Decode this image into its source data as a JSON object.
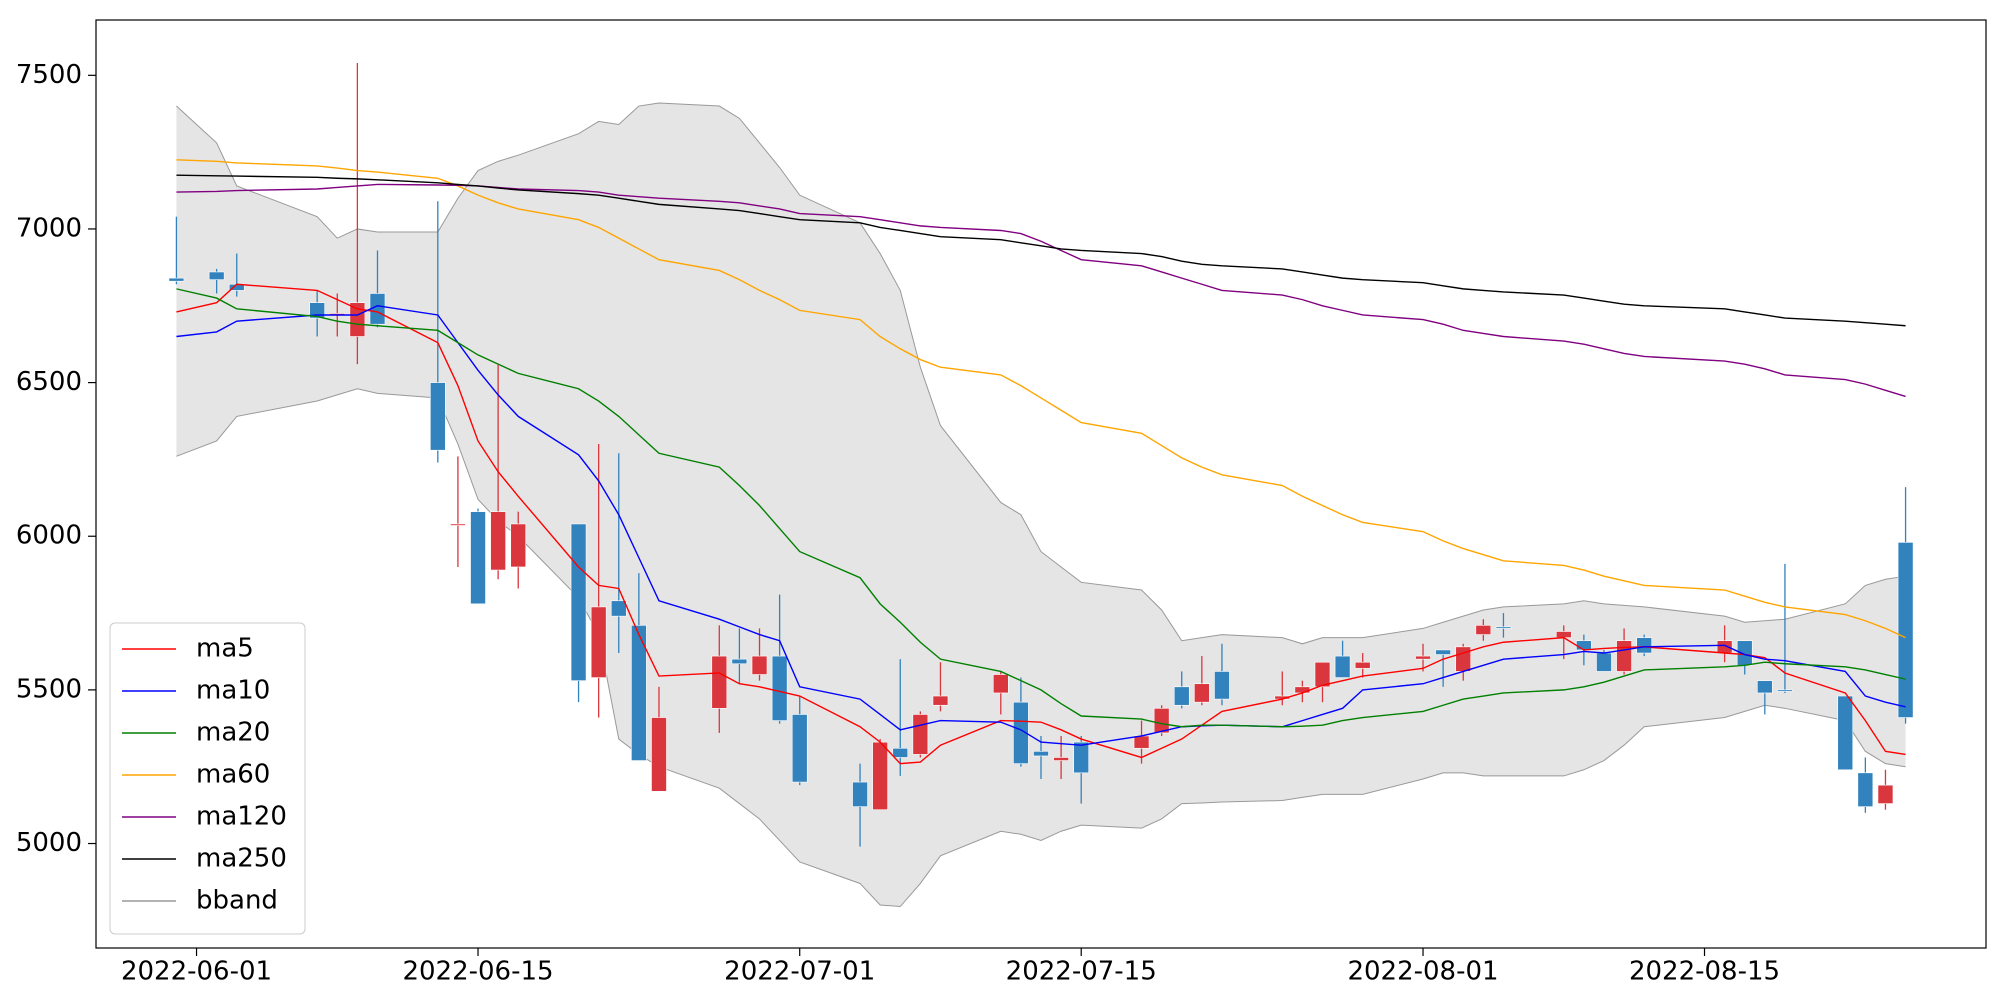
{
  "chart_data": {
    "type": "candlestick",
    "x": [
      "2022-05-31",
      "2022-06-02",
      "2022-06-03",
      "2022-06-07",
      "2022-06-08",
      "2022-06-09",
      "2022-06-10",
      "2022-06-13",
      "2022-06-14",
      "2022-06-15",
      "2022-06-16",
      "2022-06-17",
      "2022-06-20",
      "2022-06-21",
      "2022-06-22",
      "2022-06-23",
      "2022-06-24",
      "2022-06-27",
      "2022-06-28",
      "2022-06-29",
      "2022-06-30",
      "2022-07-01",
      "2022-07-04",
      "2022-07-05",
      "2022-07-06",
      "2022-07-07",
      "2022-07-08",
      "2022-07-11",
      "2022-07-12",
      "2022-07-13",
      "2022-07-14",
      "2022-07-15",
      "2022-07-18",
      "2022-07-19",
      "2022-07-20",
      "2022-07-21",
      "2022-07-22",
      "2022-07-25",
      "2022-07-26",
      "2022-07-27",
      "2022-07-28",
      "2022-07-29",
      "2022-08-01",
      "2022-08-02",
      "2022-08-03",
      "2022-08-04",
      "2022-08-05",
      "2022-08-08",
      "2022-08-09",
      "2022-08-10",
      "2022-08-11",
      "2022-08-12",
      "2022-08-16",
      "2022-08-17",
      "2022-08-18",
      "2022-08-19",
      "2022-08-22",
      "2022-08-23",
      "2022-08-24",
      "2022-08-25"
    ],
    "open": [
      6840,
      6860,
      6820,
      6760,
      6720,
      6650,
      6790,
      6500,
      6035,
      6080,
      5890,
      5900,
      6040,
      5540,
      5790,
      5710,
      5170,
      5440,
      5600,
      5550,
      5610,
      5420,
      5200,
      5110,
      5310,
      5290,
      5450,
      5490,
      5460,
      5300,
      5270,
      5330,
      5310,
      5360,
      5510,
      5460,
      5560,
      5470,
      5490,
      5510,
      5610,
      5570,
      5600,
      5630,
      5560,
      5680,
      5705,
      5670,
      5660,
      5620,
      5560,
      5670,
      5620,
      5660,
      5530,
      5500,
      5480,
      5230,
      5130,
      5980
    ],
    "high": [
      7040,
      6870,
      6920,
      6800,
      6790,
      7540,
      6930,
      7090,
      6260,
      6090,
      6560,
      6080,
      6040,
      6300,
      6270,
      5880,
      5510,
      5710,
      5700,
      5700,
      5810,
      5480,
      5260,
      5340,
      5600,
      5430,
      5590,
      5560,
      5540,
      5350,
      5350,
      5350,
      5400,
      5450,
      5560,
      5610,
      5650,
      5560,
      5530,
      5590,
      5660,
      5620,
      5650,
      5630,
      5650,
      5730,
      5750,
      5710,
      5680,
      5630,
      5700,
      5680,
      5710,
      5660,
      5530,
      5910,
      5480,
      5280,
      5240,
      6160
    ],
    "low": [
      6820,
      6790,
      6780,
      6650,
      6650,
      6560,
      6680,
      6240,
      5900,
      5780,
      5860,
      5830,
      5460,
      5410,
      5620,
      5270,
      5170,
      5360,
      5520,
      5530,
      5390,
      5190,
      4990,
      5110,
      5220,
      5280,
      5430,
      5420,
      5250,
      5210,
      5210,
      5130,
      5260,
      5350,
      5440,
      5450,
      5450,
      5450,
      5460,
      5460,
      5540,
      5540,
      5560,
      5510,
      5530,
      5660,
      5670,
      5600,
      5580,
      5560,
      5550,
      5610,
      5590,
      5550,
      5420,
      5490,
      5240,
      5100,
      5110,
      5390
    ],
    "close": [
      6830,
      6835,
      6800,
      6710,
      6725,
      6760,
      6690,
      6280,
      6040,
      5780,
      6080,
      6040,
      5530,
      5770,
      5740,
      5270,
      5410,
      5610,
      5585,
      5610,
      5400,
      5200,
      5120,
      5330,
      5280,
      5420,
      5480,
      5550,
      5260,
      5285,
      5280,
      5230,
      5350,
      5440,
      5450,
      5520,
      5470,
      5480,
      5510,
      5590,
      5540,
      5590,
      5610,
      5615,
      5640,
      5710,
      5700,
      5690,
      5630,
      5560,
      5660,
      5620,
      5660,
      5580,
      5490,
      5495,
      5240,
      5120,
      5190,
      5410
    ],
    "up_color": "#d9363e",
    "down_color": "#3182bd",
    "series": [
      {
        "name": "ma5",
        "color": "#ff0000",
        "values": [
          6730,
          6760,
          6820,
          6800,
          6770,
          6740,
          6730,
          6630,
          6490,
          6310,
          6210,
          6130,
          5900,
          5840,
          5830,
          5680,
          5545,
          5555,
          5520,
          5510,
          5495,
          5480,
          5380,
          5330,
          5260,
          5265,
          5320,
          5400,
          5398,
          5395,
          5370,
          5340,
          5280,
          5310,
          5340,
          5385,
          5430,
          5470,
          5490,
          5515,
          5530,
          5545,
          5570,
          5600,
          5620,
          5640,
          5655,
          5670,
          5630,
          5635,
          5638,
          5640,
          5620,
          5615,
          5605,
          5555,
          5490,
          5400,
          5300,
          5290
        ]
      },
      {
        "name": "ma10",
        "color": "#0000ff",
        "values": [
          6650,
          6665,
          6700,
          6720,
          6720,
          6720,
          6750,
          6720,
          6630,
          6540,
          6460,
          6390,
          6265,
          6180,
          6070,
          5930,
          5790,
          5730,
          5705,
          5680,
          5660,
          5510,
          5470,
          5420,
          5370,
          5385,
          5400,
          5395,
          5370,
          5330,
          5325,
          5320,
          5350,
          5365,
          5380,
          5383,
          5385,
          5380,
          5400,
          5420,
          5440,
          5500,
          5520,
          5540,
          5560,
          5580,
          5600,
          5615,
          5625,
          5620,
          5630,
          5640,
          5645,
          5615,
          5600,
          5595,
          5560,
          5480,
          5460,
          5445
        ]
      },
      {
        "name": "ma20",
        "color": "#008000",
        "values": [
          6805,
          6775,
          6740,
          6715,
          6700,
          6690,
          6685,
          6670,
          6630,
          6590,
          6560,
          6530,
          6480,
          6440,
          6390,
          6330,
          6270,
          6225,
          6165,
          6100,
          6025,
          5950,
          5865,
          5780,
          5720,
          5655,
          5600,
          5560,
          5530,
          5500,
          5455,
          5415,
          5405,
          5390,
          5380,
          5385,
          5385,
          5380,
          5382,
          5385,
          5400,
          5410,
          5430,
          5450,
          5470,
          5480,
          5490,
          5500,
          5510,
          5525,
          5545,
          5565,
          5575,
          5580,
          5590,
          5585,
          5575,
          5565,
          5550,
          5535
        ]
      },
      {
        "name": "ma60",
        "color": "#ffa500",
        "values": [
          7225,
          7220,
          7215,
          7205,
          7198,
          7190,
          7185,
          7165,
          7140,
          7110,
          7085,
          7065,
          7030,
          7005,
          6970,
          6935,
          6900,
          6865,
          6835,
          6800,
          6770,
          6735,
          6705,
          6650,
          6610,
          6575,
          6550,
          6525,
          6490,
          6450,
          6410,
          6370,
          6335,
          6295,
          6255,
          6225,
          6200,
          6165,
          6130,
          6100,
          6070,
          6045,
          6015,
          5985,
          5960,
          5940,
          5920,
          5905,
          5890,
          5870,
          5855,
          5840,
          5825,
          5805,
          5785,
          5770,
          5745,
          5725,
          5700,
          5670
        ]
      },
      {
        "name": "ma120",
        "color": "#800080",
        "values": [
          7120,
          7122,
          7125,
          7130,
          7135,
          7140,
          7145,
          7143,
          7142,
          7140,
          7135,
          7130,
          7125,
          7120,
          7110,
          7105,
          7100,
          7090,
          7085,
          7075,
          7065,
          7050,
          7040,
          7030,
          7020,
          7010,
          7005,
          6995,
          6985,
          6960,
          6930,
          6900,
          6880,
          6860,
          6840,
          6820,
          6800,
          6785,
          6770,
          6750,
          6735,
          6720,
          6705,
          6690,
          6670,
          6660,
          6650,
          6635,
          6625,
          6610,
          6595,
          6585,
          6570,
          6560,
          6545,
          6525,
          6510,
          6495,
          6475,
          6455
        ]
      },
      {
        "name": "ma250",
        "color": "#000000",
        "values": [
          7175,
          7173,
          7172,
          7168,
          7165,
          7163,
          7160,
          7150,
          7145,
          7140,
          7133,
          7127,
          7115,
          7110,
          7100,
          7090,
          7080,
          7065,
          7060,
          7050,
          7040,
          7030,
          7020,
          7005,
          6995,
          6985,
          6975,
          6965,
          6955,
          6945,
          6935,
          6930,
          6920,
          6910,
          6895,
          6885,
          6880,
          6870,
          6860,
          6850,
          6840,
          6835,
          6825,
          6815,
          6805,
          6800,
          6795,
          6785,
          6775,
          6765,
          6755,
          6750,
          6740,
          6730,
          6720,
          6710,
          6700,
          6695,
          6690,
          6685
        ]
      }
    ],
    "band": {
      "name": "bband",
      "color": "#999999",
      "fill": "#e5e5e5",
      "upper": [
        7400,
        7280,
        7140,
        7040,
        6970,
        7000,
        6990,
        6990,
        7100,
        7190,
        7220,
        7240,
        7310,
        7350,
        7340,
        7400,
        7410,
        7400,
        7360,
        7280,
        7200,
        7110,
        7020,
        6920,
        6800,
        6550,
        6360,
        6110,
        6070,
        5950,
        5900,
        5850,
        5825,
        5760,
        5660,
        5670,
        5680,
        5670,
        5650,
        5670,
        5670,
        5670,
        5700,
        5720,
        5740,
        5760,
        5770,
        5780,
        5790,
        5780,
        5775,
        5770,
        5740,
        5720,
        5725,
        5730,
        5780,
        5840,
        5860,
        5870
      ],
      "lower": [
        6260,
        6310,
        6390,
        6440,
        6460,
        6480,
        6465,
        6450,
        6300,
        6120,
        6050,
        6000,
        5800,
        5680,
        5340,
        5290,
        5250,
        5180,
        5130,
        5080,
        5010,
        4940,
        4870,
        4800,
        4795,
        4870,
        4960,
        5040,
        5030,
        5010,
        5040,
        5060,
        5050,
        5080,
        5130,
        5132,
        5135,
        5140,
        5150,
        5160,
        5160,
        5160,
        5210,
        5230,
        5230,
        5220,
        5220,
        5220,
        5240,
        5270,
        5320,
        5380,
        5410,
        5430,
        5450,
        5440,
        5400,
        5300,
        5260,
        5250
      ]
    },
    "xlim": [
      "2022-05-27",
      "2022-08-29"
    ],
    "xticks": [
      "2022-06-01",
      "2022-06-15",
      "2022-07-01",
      "2022-07-15",
      "2022-08-01",
      "2022-08-15"
    ],
    "ylim": [
      4660,
      7680
    ],
    "yticks": [
      5000,
      5500,
      6000,
      6500,
      7000,
      7500
    ],
    "grid": false,
    "legend": "lower left"
  }
}
